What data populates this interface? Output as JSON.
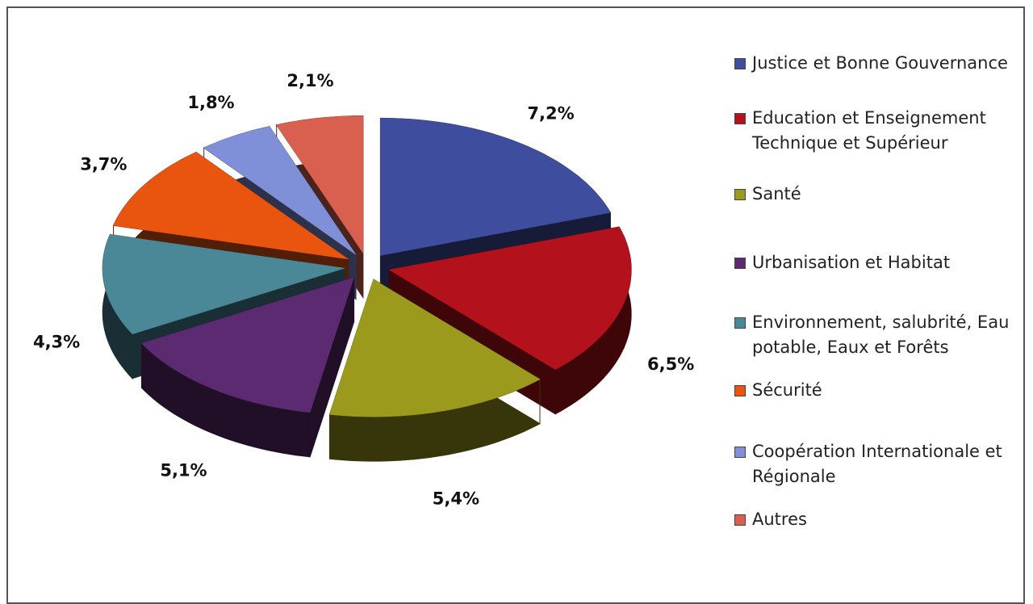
{
  "chart_data": {
    "type": "pie",
    "categories": [
      "Justice et Bonne Gouvernance",
      "Education et Enseignement Technique et Supérieur",
      "Santé",
      "Urbanisation et Habitat",
      "Environnement, salubrité, Eau potable, Eaux et Forêts",
      "Sécurité",
      "Coopération Internationale et Régionale",
      "Autres"
    ],
    "values": [
      7.2,
      6.5,
      5.4,
      5.1,
      4.3,
      3.7,
      1.8,
      2.1
    ],
    "value_labels": [
      "7,2%",
      "6,5%",
      "5,4%",
      "5,1%",
      "4,3%",
      "3,7%",
      "1,8%",
      "2,1%"
    ],
    "colors": [
      "#3f4d9e",
      "#b3121c",
      "#9c9a1c",
      "#5b2a70",
      "#4a8797",
      "#e9550f",
      "#7f8fd8",
      "#d9604f"
    ],
    "legend": "right"
  }
}
